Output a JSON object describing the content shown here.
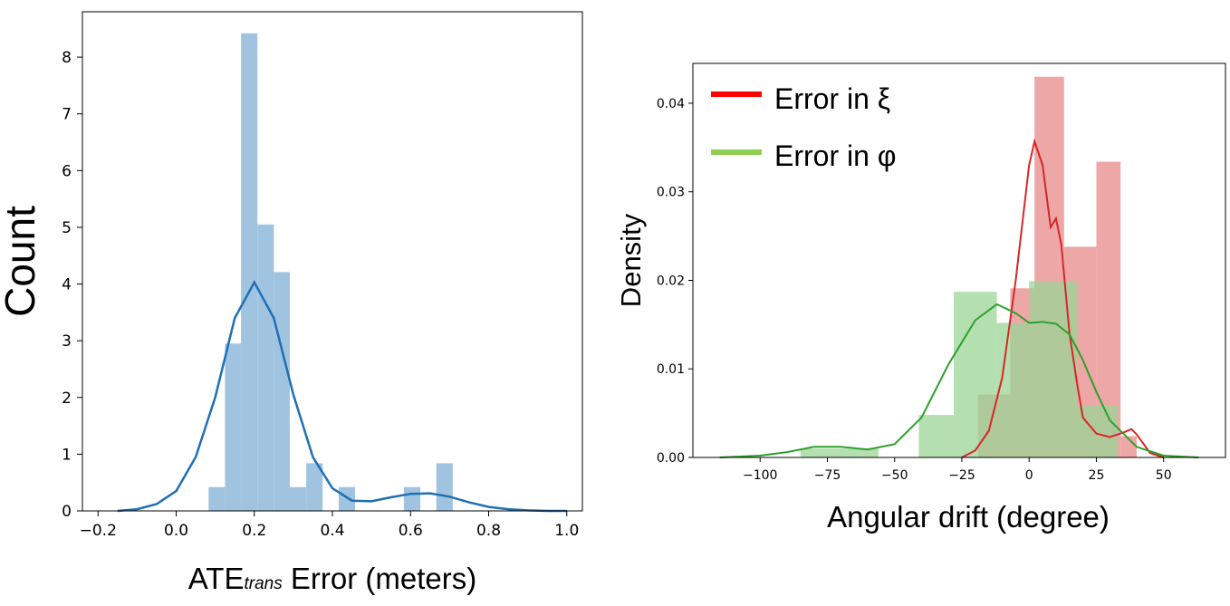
{
  "chart_data": [
    {
      "type": "histogram",
      "xlabel_main": "ATE",
      "xlabel_sub": "trans",
      "xlabel_rest": " Error (meters)",
      "ylabel": "Count",
      "xlim": [
        -0.24,
        1.04
      ],
      "ylim": [
        0,
        8.8
      ],
      "xticks": [
        -0.2,
        0.0,
        0.2,
        0.4,
        0.6,
        0.8,
        1.0
      ],
      "xtick_labels": [
        "−0.2",
        "0.0",
        "0.2",
        "0.4",
        "0.6",
        "0.8",
        "1.0"
      ],
      "yticks": [
        0,
        1,
        2,
        3,
        4,
        5,
        6,
        7,
        8
      ],
      "ytick_labels": [
        "0",
        "1",
        "2",
        "3",
        "4",
        "5",
        "6",
        "7",
        "8"
      ],
      "bar_color": "#a0c4e0",
      "kde_color": "#1f6fb4",
      "bins": [
        {
          "x0": 0.083,
          "x1": 0.125,
          "value": 0.42
        },
        {
          "x0": 0.125,
          "x1": 0.166,
          "value": 2.95
        },
        {
          "x0": 0.166,
          "x1": 0.208,
          "value": 8.42
        },
        {
          "x0": 0.208,
          "x1": 0.25,
          "value": 5.05
        },
        {
          "x0": 0.25,
          "x1": 0.291,
          "value": 4.21
        },
        {
          "x0": 0.291,
          "x1": 0.333,
          "value": 0.42
        },
        {
          "x0": 0.333,
          "x1": 0.375,
          "value": 0.84
        },
        {
          "x0": 0.416,
          "x1": 0.458,
          "value": 0.42
        },
        {
          "x0": 0.583,
          "x1": 0.625,
          "value": 0.42
        },
        {
          "x0": 0.666,
          "x1": 0.708,
          "value": 0.84
        }
      ],
      "kde": {
        "x": [
          -0.15,
          -0.1,
          -0.05,
          0.0,
          0.05,
          0.1,
          0.15,
          0.2,
          0.25,
          0.3,
          0.35,
          0.4,
          0.45,
          0.5,
          0.55,
          0.6,
          0.65,
          0.7,
          0.75,
          0.8,
          0.85,
          0.9,
          0.95,
          1.0
        ],
        "y": [
          0.0,
          0.03,
          0.12,
          0.35,
          0.95,
          2.0,
          3.4,
          4.03,
          3.4,
          2.05,
          0.95,
          0.4,
          0.18,
          0.17,
          0.24,
          0.3,
          0.31,
          0.25,
          0.15,
          0.07,
          0.03,
          0.01,
          0.0,
          0.0
        ]
      }
    },
    {
      "type": "histogram",
      "xlabel": "Angular drift (degree)",
      "ylabel": "Density",
      "xlim": [
        -125,
        73
      ],
      "ylim": [
        0,
        0.0445
      ],
      "xticks": [
        -100,
        -75,
        -50,
        -25,
        0,
        25,
        50
      ],
      "xtick_labels": [
        "−100",
        "−75",
        "−50",
        "−25",
        "0",
        "25",
        "50"
      ],
      "yticks": [
        0,
        0.01,
        0.02,
        0.03,
        0.04
      ],
      "ytick_labels": [
        "0.00",
        "0.01",
        "0.02",
        "0.03",
        "0.04"
      ],
      "legend_position": "top-left",
      "series": [
        {
          "name": "Error in ξ",
          "legend_color": "#ff0000",
          "bar_color": "#e88a8a",
          "kde_color": "#d62728",
          "bins": [
            {
              "x0": -19,
              "x1": -7,
              "value": 0.0071
            },
            {
              "x0": -7,
              "x1": 2,
              "value": 0.0191
            },
            {
              "x0": 2,
              "x1": 13,
              "value": 0.043
            },
            {
              "x0": 13,
              "x1": 25,
              "value": 0.0238
            },
            {
              "x0": 25,
              "x1": 34,
              "value": 0.0334
            },
            {
              "x0": 34,
              "x1": 40,
              "value": 0.0024
            }
          ],
          "kde": {
            "x": [
              -25,
              -20,
              -15,
              -10,
              -5,
              0,
              2,
              5,
              8,
              10,
              12,
              15,
              18,
              20,
              25,
              30,
              35,
              38,
              40,
              45,
              50
            ],
            "y": [
              0.0,
              0.0008,
              0.003,
              0.009,
              0.02,
              0.033,
              0.0357,
              0.033,
              0.026,
              0.027,
              0.024,
              0.014,
              0.008,
              0.0045,
              0.0027,
              0.0023,
              0.0028,
              0.0032,
              0.0026,
              0.0005,
              0.0
            ]
          }
        },
        {
          "name": "Error in φ",
          "legend_color": "#8fce50",
          "bar_color": "#9bd496",
          "kde_color": "#2ca02c",
          "bins": [
            {
              "x0": -85,
              "x1": -56,
              "value": 0.001
            },
            {
              "x0": -41,
              "x1": -28,
              "value": 0.0048
            },
            {
              "x0": -28,
              "x1": -12,
              "value": 0.0187
            },
            {
              "x0": -12,
              "x1": 0,
              "value": 0.0152
            },
            {
              "x0": 0,
              "x1": 18,
              "value": 0.0199
            },
            {
              "x0": 18,
              "x1": 33,
              "value": 0.0059
            }
          ],
          "kde": {
            "x": [
              -115,
              -100,
              -90,
              -80,
              -70,
              -60,
              -50,
              -40,
              -30,
              -20,
              -12,
              -5,
              0,
              5,
              10,
              15,
              20,
              25,
              30,
              40,
              50,
              63
            ],
            "y": [
              0.0,
              0.0002,
              0.0006,
              0.0012,
              0.0012,
              0.0009,
              0.0015,
              0.0045,
              0.0105,
              0.0155,
              0.0173,
              0.0163,
              0.0152,
              0.0153,
              0.0151,
              0.0139,
              0.011,
              0.0074,
              0.0042,
              0.0012,
              0.0002,
              0.0
            ]
          }
        }
      ]
    }
  ]
}
